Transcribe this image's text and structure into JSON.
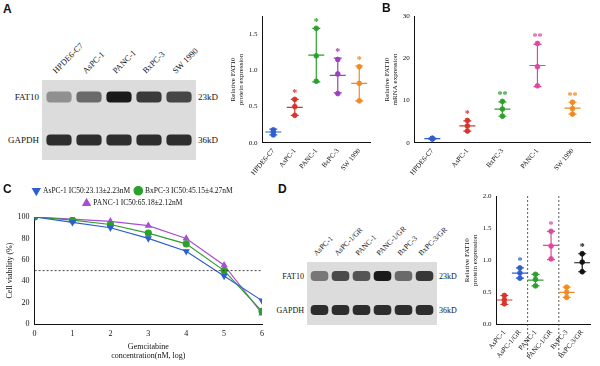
{
  "chart_data": [
    {
      "type": "dot",
      "y_label": "Relative FAT10 protein expression",
      "categories": [
        "HPDE6-C7",
        "AsPC-1",
        "PANC-1",
        "BxPC-3",
        "SW 1990"
      ],
      "values": [
        0.15,
        0.49,
        1.21,
        0.93,
        0.82
      ],
      "errors": [
        0.04,
        0.11,
        0.37,
        0.24,
        0.24
      ],
      "replicates": [
        [
          0.11,
          0.15,
          0.18
        ],
        [
          0.38,
          0.5,
          0.6
        ],
        [
          0.85,
          1.2,
          1.58
        ],
        [
          0.68,
          0.95,
          1.15
        ],
        [
          0.58,
          0.82,
          1.05
        ]
      ],
      "significance": [
        null,
        "*",
        "*",
        "*",
        "*"
      ],
      "colors": [
        "#2f5fcf",
        "#d8342c",
        "#2ca02c",
        "#9b3fbf",
        "#f08a24"
      ],
      "marker": "circle",
      "ylim": [
        0,
        1.75
      ],
      "yticks": [
        {
          "value": 0,
          "label": "0.0"
        },
        {
          "value": 0.5,
          "label": "0.5"
        },
        {
          "value": 1,
          "label": "1.0"
        },
        {
          "value": 1.5,
          "label": "1.5"
        }
      ],
      "grid": false
    },
    {
      "type": "dot",
      "panel": "B",
      "y_label": "Relative FAT10 mRNA expression",
      "categories": [
        "HPDE6-C7",
        "AsPC-1",
        "BxPC-3",
        "PANC-1",
        "SW 1990"
      ],
      "values": [
        1.0,
        4.0,
        8.0,
        18.3,
        8.2
      ],
      "errors": [
        0.1,
        1.2,
        1.7,
        5.0,
        1.4
      ],
      "replicates": [
        [
          0.9,
          1.0,
          1.1
        ],
        [
          2.8,
          4.0,
          5.3
        ],
        [
          6.3,
          8.0,
          9.8
        ],
        [
          13.5,
          18,
          23.5
        ],
        [
          6.8,
          8.1,
          9.6
        ]
      ],
      "significance": [
        null,
        "*",
        "**",
        "**",
        "**"
      ],
      "colors": [
        "#2f5fcf",
        "#d8342c",
        "#2ca02c",
        "#e0479e",
        "#f08a24"
      ],
      "marker": "circle",
      "ylim": [
        0,
        30
      ],
      "yticks": [
        0,
        10,
        20,
        30
      ],
      "grid": false
    },
    {
      "type": "line",
      "panel": "C",
      "x_label": "Gemcitabine concentration(nM, log)",
      "y_label": "Cell viability (%)",
      "x": [
        0,
        1,
        2,
        3,
        4,
        5,
        6
      ],
      "series": [
        {
          "name": "AsPC-1 IC50:23.13±2.23nM",
          "color": "#2f5fcf",
          "marker": "triangle_down",
          "values": [
            100,
            95,
            90,
            80,
            68,
            45,
            22
          ]
        },
        {
          "name": "BxPC-3 IC50:45.15±4.27nM",
          "color": "#2ca02c",
          "marker": "circle",
          "values": [
            100,
            97,
            93,
            85,
            75,
            50,
            12
          ]
        },
        {
          "name": "PANC-1 IC50:65.18±2.12nM",
          "color": "#a64fd6",
          "marker": "triangle",
          "values": [
            100,
            98,
            96,
            92,
            80,
            55,
            10
          ]
        }
      ],
      "threshold": 50,
      "xlim": [
        0,
        6
      ],
      "xticks": [
        0,
        1,
        2,
        3,
        4,
        5,
        6
      ],
      "ylim": [
        0,
        100
      ],
      "yticks": [
        0,
        20,
        40,
        60,
        80,
        100
      ],
      "legend": "top",
      "grid": false
    },
    {
      "type": "dot",
      "y_label": "Relative FAT10 protein expression",
      "categories": [
        "AsPC-1",
        "AsPC-1/GR",
        "PANC-1",
        "PANC-1/GR",
        "BxPC-3",
        "BxPC-3/GR"
      ],
      "values": [
        0.38,
        0.8,
        0.69,
        1.23,
        0.5,
        0.96
      ],
      "errors": [
        0.07,
        0.08,
        0.09,
        0.22,
        0.08,
        0.14
      ],
      "replicates": [
        [
          0.32,
          0.38,
          0.45
        ],
        [
          0.72,
          0.8,
          0.88
        ],
        [
          0.6,
          0.7,
          0.78
        ],
        [
          1.02,
          1.22,
          1.45
        ],
        [
          0.42,
          0.5,
          0.58
        ],
        [
          0.82,
          0.97,
          1.1
        ]
      ],
      "significance": [
        null,
        "*",
        null,
        "*",
        null,
        "*"
      ],
      "colors": [
        "#d8342c",
        "#2f5fcf",
        "#2ca02c",
        "#e0479e",
        "#f08a24",
        "#111111"
      ],
      "marker": "circle",
      "ylim": [
        0,
        2
      ],
      "yticks": [
        {
          "value": 0,
          "label": "0.0"
        },
        {
          "value": 0.5,
          "label": "0.5"
        },
        {
          "value": 1,
          "label": "1.0"
        },
        {
          "value": 1.5,
          "label": "1.5"
        },
        {
          "value": 2,
          "label": "2.0"
        }
      ],
      "grid": false
    }
  ],
  "blots": [
    {
      "panel": "A",
      "lanes": [
        "HPDE6-C7",
        "AsPC-1",
        "PANC-1",
        "BxPC-3",
        "SW 1990"
      ],
      "rows": [
        {
          "name": "FAT10",
          "size": "23kD"
        },
        {
          "name": "GAPDH",
          "size": "36kD"
        }
      ]
    },
    {
      "panel": "D",
      "lanes": [
        "AsPC-1",
        "AsPC-1/GR",
        "PANC-1",
        "PANC-1/GR",
        "BxPC-3",
        "BxPC-3/GR"
      ],
      "rows": [
        {
          "name": "FAT10",
          "size": "23kD"
        },
        {
          "name": "GAPDH",
          "size": "36kD"
        }
      ]
    }
  ]
}
